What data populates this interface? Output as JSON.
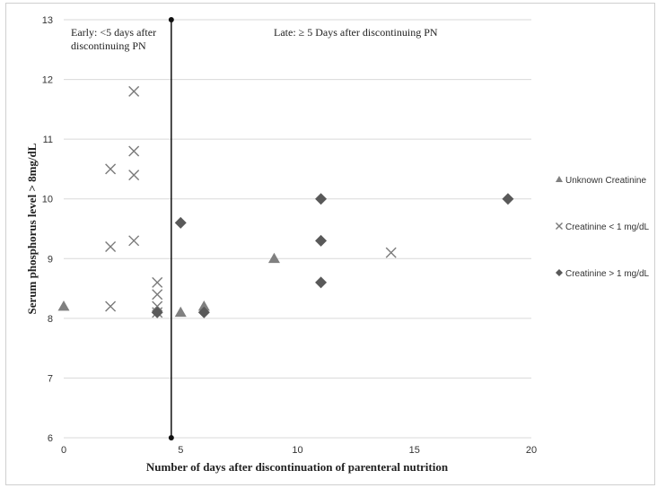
{
  "chart_data": {
    "type": "scatter",
    "title": "",
    "xlabel": "Number of days after discontinuation of parenteral nutrition",
    "ylabel": "Serum phosphorus level > 8mg/dL",
    "xlim": [
      0,
      20
    ],
    "ylim": [
      6,
      13
    ],
    "x_ticks": [
      "0",
      "5",
      "10",
      "15",
      "20"
    ],
    "y_ticks": [
      "6",
      "7",
      "8",
      "9",
      "10",
      "11",
      "12",
      "13"
    ],
    "grid": "horizontal",
    "legend_position": "right",
    "annotations": {
      "early": "Early: <5 days after discontinuing PN",
      "late": "Late: ≥ 5 Days after discontinuing PN"
    },
    "divider_x": 4.6,
    "series": [
      {
        "name": "Unknown Creatinine",
        "marker": "triangle",
        "color": "#808080",
        "points": [
          [
            0,
            8.2
          ],
          [
            5,
            8.1
          ],
          [
            6,
            8.2
          ],
          [
            9,
            9.0
          ]
        ]
      },
      {
        "name": "Creatinine < 1 mg/dL",
        "marker": "x",
        "color": "#7a7a7a",
        "points": [
          [
            2,
            10.5
          ],
          [
            2,
            9.2
          ],
          [
            2,
            8.2
          ],
          [
            3,
            11.8
          ],
          [
            3,
            10.8
          ],
          [
            3,
            10.4
          ],
          [
            3,
            9.3
          ],
          [
            4,
            8.6
          ],
          [
            4,
            8.4
          ],
          [
            4,
            8.2
          ],
          [
            4,
            8.1
          ],
          [
            14,
            9.1
          ]
        ]
      },
      {
        "name": "Creatinine > 1 mg/dL",
        "marker": "diamond",
        "color": "#595959",
        "points": [
          [
            4,
            8.1
          ],
          [
            5,
            9.6
          ],
          [
            6,
            8.1
          ],
          [
            11,
            10.0
          ],
          [
            11,
            9.3
          ],
          [
            11,
            8.6
          ],
          [
            19,
            10.0
          ]
        ]
      }
    ]
  }
}
